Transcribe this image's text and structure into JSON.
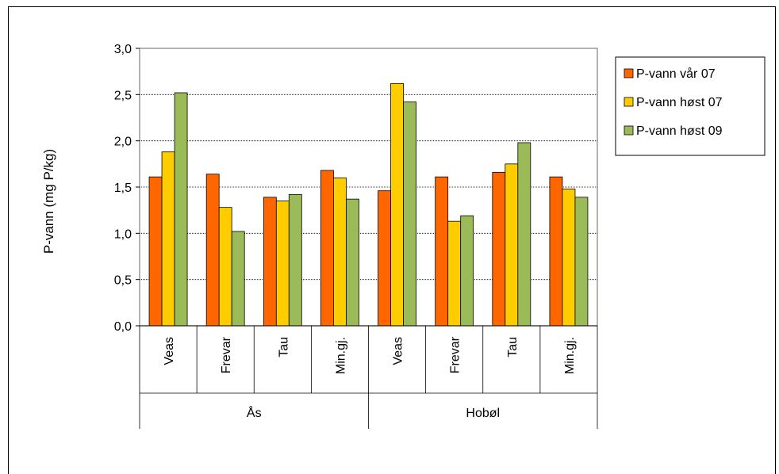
{
  "chart_data": {
    "type": "bar",
    "ylabel": "P-vann (mg P/kg)",
    "ylim": [
      0,
      3.0
    ],
    "yticks": [
      "0,0",
      "0,5",
      "1,0",
      "1,5",
      "2,0",
      "2,5",
      "3,0"
    ],
    "grid": true,
    "legend_position": "right",
    "groups": [
      {
        "name": "Ås",
        "categories": [
          "Veas",
          "Frevar",
          "Tau",
          "Min.gj."
        ]
      },
      {
        "name": "Hobøl",
        "categories": [
          "Veas",
          "Frevar",
          "Tau",
          "Min.gj."
        ]
      }
    ],
    "series": [
      {
        "name": "P-vann vår 07",
        "color": "#FF6600",
        "values": [
          1.61,
          1.64,
          1.39,
          1.68,
          1.46,
          1.61,
          1.66,
          1.61
        ]
      },
      {
        "name": "P-vann høst 07",
        "color": "#FFCC00",
        "values": [
          1.88,
          1.28,
          1.35,
          1.6,
          2.62,
          1.13,
          1.75,
          1.48
        ]
      },
      {
        "name": "P-vann høst 09",
        "color": "#9BBB59",
        "values": [
          2.52,
          1.02,
          1.42,
          1.37,
          2.42,
          1.19,
          1.98,
          1.39
        ]
      }
    ]
  }
}
